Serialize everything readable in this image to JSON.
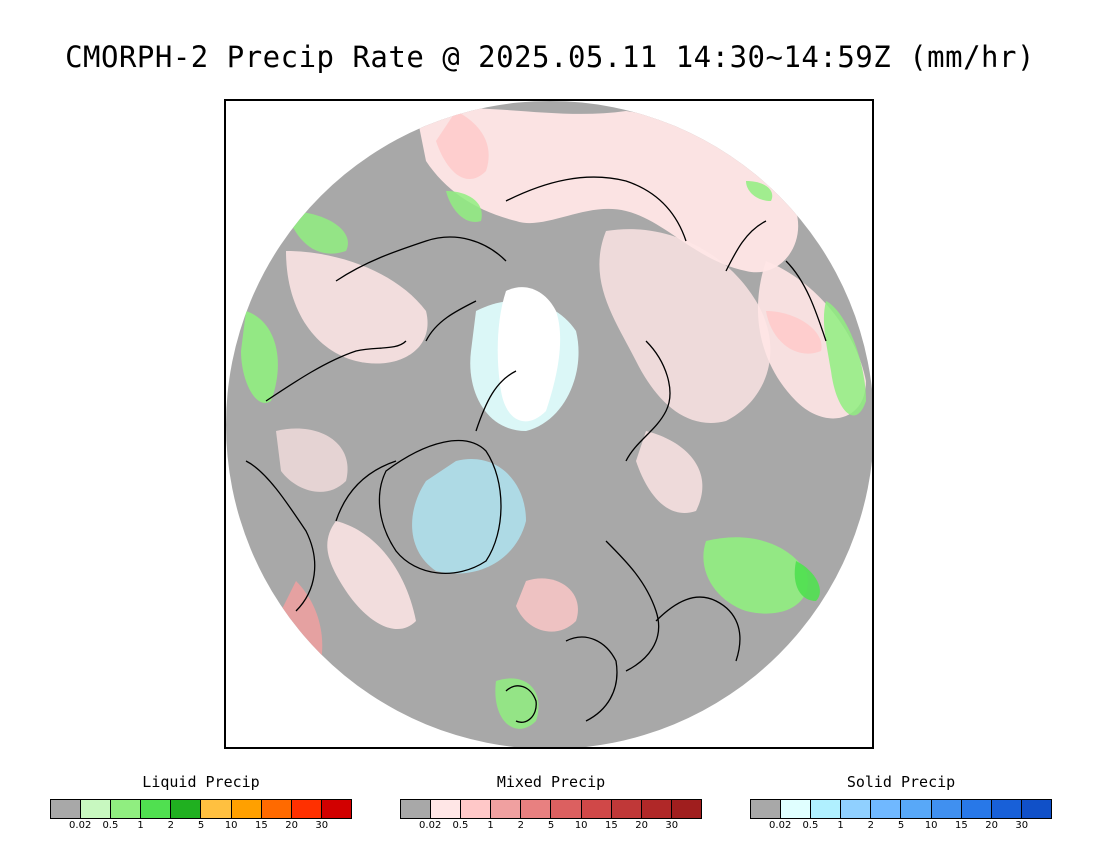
{
  "title": "CMORPH-2 Precip Rate @ 2025.05.11 14:30~14:59Z (mm/hr)",
  "map": {
    "projection": "north-polar-stereographic",
    "colors": {
      "no_data": "#ffffff",
      "no_precip": "#a8a8a8",
      "frame": "#000000",
      "coastline": "#000000"
    },
    "precip_regions": [
      {
        "name": "pacific-mixed-band",
        "type": "mixed",
        "level": 0.02
      },
      {
        "name": "alaska-mixed",
        "type": "mixed",
        "level": 0.5
      },
      {
        "name": "siberia-mixed",
        "type": "mixed",
        "level": 0.02
      },
      {
        "name": "north-china-mixed",
        "type": "mixed",
        "level": 0.5
      },
      {
        "name": "greenland-solid",
        "type": "solid",
        "level": 0.5
      },
      {
        "name": "arctic-solid",
        "type": "solid",
        "level": 0.02
      },
      {
        "name": "labrador-mixed",
        "type": "mixed",
        "level": 2
      },
      {
        "name": "north-america-liquid",
        "type": "liquid",
        "level": 1
      },
      {
        "name": "europe-liquid",
        "type": "liquid",
        "level": 2
      },
      {
        "name": "mediterranean-liquid",
        "type": "liquid",
        "level": 5
      },
      {
        "name": "asia-liquid",
        "type": "liquid",
        "level": 1
      },
      {
        "name": "atlantic-mixed",
        "type": "mixed",
        "level": 0.5
      }
    ]
  },
  "legends": [
    {
      "name": "liquid",
      "title": "Liquid Precip",
      "colors": [
        "#a8a8a8",
        "#c8f8c0",
        "#90ee80",
        "#50e050",
        "#20b020",
        "#ffc040",
        "#ffa000",
        "#ff6a00",
        "#ff3000",
        "#d20000"
      ],
      "ticks": [
        "0.02",
        "0.5",
        "1",
        "2",
        "5",
        "10",
        "15",
        "20",
        "30"
      ]
    },
    {
      "name": "mixed",
      "title": "Mixed Precip",
      "colors": [
        "#a8a8a8",
        "#ffe6e6",
        "#ffc8c8",
        "#f0a0a0",
        "#e88080",
        "#dc6060",
        "#d04848",
        "#c03838",
        "#b02828",
        "#a01e1e"
      ],
      "ticks": [
        "0.02",
        "0.5",
        "1",
        "2",
        "5",
        "10",
        "15",
        "20",
        "30"
      ]
    },
    {
      "name": "solid",
      "title": "Solid Precip",
      "colors": [
        "#a8a8a8",
        "#e0ffff",
        "#b0f0ff",
        "#90d0ff",
        "#70b8ff",
        "#58a8f8",
        "#4090f0",
        "#2878e8",
        "#1860d8",
        "#1050c8"
      ],
      "ticks": [
        "0.02",
        "0.5",
        "1",
        "2",
        "5",
        "10",
        "15",
        "20",
        "30"
      ]
    }
  ]
}
